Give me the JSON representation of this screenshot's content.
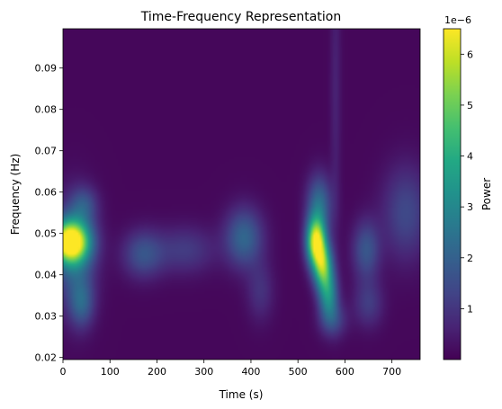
{
  "chart_data": {
    "type": "heatmap",
    "title": "Time-Frequency Representation",
    "xlabel": "Time (s)",
    "ylabel": "Frequency (Hz)",
    "xlim": [
      0,
      760
    ],
    "ylim": [
      0.0195,
      0.0995
    ],
    "x_ticks": [
      0,
      100,
      200,
      300,
      400,
      500,
      600,
      700
    ],
    "y_ticks": [
      0.02,
      0.03,
      0.04,
      0.05,
      0.06,
      0.07,
      0.08,
      0.09
    ],
    "y_tick_labels": [
      "0.02",
      "0.03",
      "0.04",
      "0.05",
      "0.06",
      "0.07",
      "0.08",
      "0.09"
    ],
    "colormap": "viridis",
    "colorbar": {
      "label": "Power",
      "range": [
        0,
        6.5e-06
      ],
      "ticks": [
        1,
        2,
        3,
        4,
        5,
        6
      ],
      "offset_text": "1e−6"
    },
    "power_blobs": [
      {
        "time": 15,
        "freq": 0.048,
        "time_spread": 28,
        "freq_spread": 0.0035,
        "peak": 6.5e-06
      },
      {
        "time": 25,
        "freq": 0.045,
        "time_spread": 30,
        "freq_spread": 0.009,
        "peak": 2e-06
      },
      {
        "time": 40,
        "freq": 0.033,
        "time_spread": 18,
        "freq_spread": 0.004,
        "peak": 1.5e-06
      },
      {
        "time": 45,
        "freq": 0.057,
        "time_spread": 20,
        "freq_spread": 0.003,
        "peak": 1.2e-06
      },
      {
        "time": 170,
        "freq": 0.045,
        "time_spread": 30,
        "freq_spread": 0.004,
        "peak": 1.5e-06
      },
      {
        "time": 260,
        "freq": 0.046,
        "time_spread": 45,
        "freq_spread": 0.004,
        "peak": 1e-06
      },
      {
        "time": 385,
        "freq": 0.049,
        "time_spread": 28,
        "freq_spread": 0.005,
        "peak": 2e-06
      },
      {
        "time": 420,
        "freq": 0.036,
        "time_spread": 20,
        "freq_spread": 0.005,
        "peak": 8e-07
      },
      {
        "time": 538,
        "freq": 0.048,
        "time_spread": 14,
        "freq_spread": 0.004,
        "peak": 6e-06
      },
      {
        "time": 553,
        "freq": 0.042,
        "time_spread": 14,
        "freq_spread": 0.004,
        "peak": 4.5e-06
      },
      {
        "time": 565,
        "freq": 0.035,
        "time_spread": 14,
        "freq_spread": 0.004,
        "peak": 2.8e-06
      },
      {
        "time": 545,
        "freq": 0.057,
        "time_spread": 18,
        "freq_spread": 0.005,
        "peak": 2.2e-06
      },
      {
        "time": 575,
        "freq": 0.029,
        "time_spread": 20,
        "freq_spread": 0.003,
        "peak": 1.2e-06
      },
      {
        "time": 645,
        "freq": 0.046,
        "time_spread": 20,
        "freq_spread": 0.005,
        "peak": 1.6e-06
      },
      {
        "time": 650,
        "freq": 0.033,
        "time_spread": 22,
        "freq_spread": 0.004,
        "peak": 1e-06
      },
      {
        "time": 730,
        "freq": 0.055,
        "time_spread": 35,
        "freq_spread": 0.008,
        "peak": 1.3e-06
      },
      {
        "time": 580,
        "freq": 0.085,
        "time_spread": 8,
        "freq_spread": 0.025,
        "peak": 5e-07
      }
    ],
    "background_power": 1.2e-07
  }
}
